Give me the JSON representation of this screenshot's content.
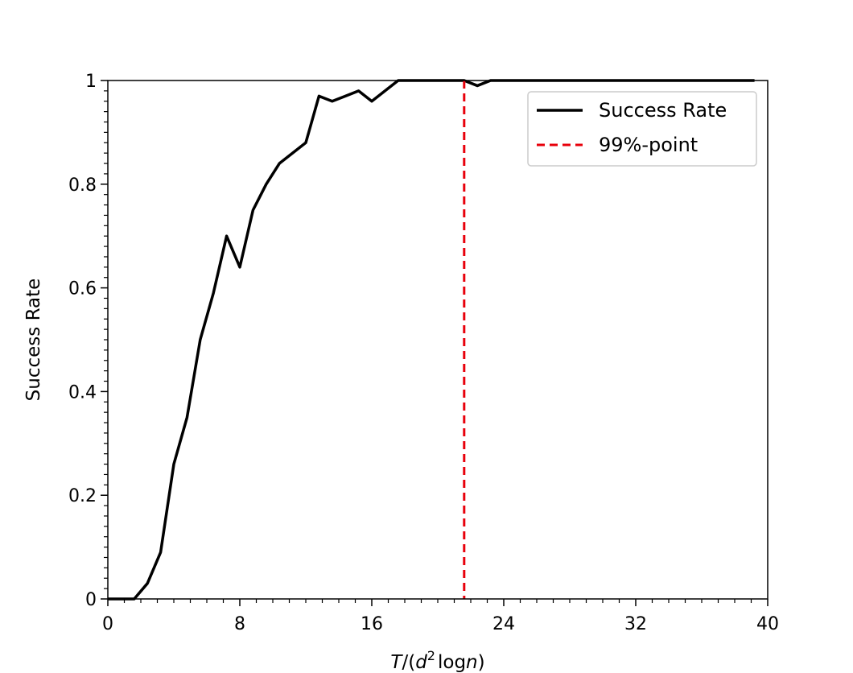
{
  "chart_data": {
    "type": "line",
    "xlim": [
      0,
      40
    ],
    "ylim": [
      0,
      1
    ],
    "xticks": [
      0,
      8,
      16,
      24,
      32,
      40
    ],
    "xtick_labels": [
      "0",
      "8",
      "16",
      "24",
      "32",
      "40"
    ],
    "yticks": [
      0,
      0.2,
      0.4,
      0.6,
      0.8,
      1
    ],
    "ytick_labels": [
      "0",
      "0.2",
      "0.4",
      "0.6",
      "0.8",
      "1"
    ],
    "xlabel": "T/(d2logn)",
    "xlabel_parts": {
      "T": "T",
      "open": "/(",
      "d": "d",
      "sup": "2",
      "log": "log",
      "n": "n",
      "close": ")"
    },
    "ylabel": "Success Rate",
    "grid": false,
    "legend_position": "top-right",
    "series": [
      {
        "name": "Success Rate",
        "color": "#000000",
        "style": "solid",
        "x": [
          0,
          0.8,
          1.6,
          2.4,
          3.2,
          4.0,
          4.8,
          5.6,
          6.4,
          7.2,
          8.0,
          8.8,
          9.6,
          10.4,
          11.2,
          12.0,
          12.8,
          13.6,
          14.4,
          15.2,
          16.0,
          16.8,
          17.6,
          18.4,
          19.2,
          20.0,
          20.8,
          21.6,
          22.4,
          23.2,
          24.0,
          24.8,
          25.6,
          26.4,
          27.2,
          28.0,
          28.8,
          29.6,
          30.4,
          31.2,
          32.0,
          32.8,
          33.6,
          34.4,
          35.2,
          36.0,
          36.8,
          37.6,
          38.4,
          39.2
        ],
        "y": [
          0,
          0,
          0,
          0.03,
          0.09,
          0.26,
          0.35,
          0.5,
          0.59,
          0.7,
          0.64,
          0.75,
          0.8,
          0.84,
          0.86,
          0.88,
          0.97,
          0.96,
          0.97,
          0.98,
          0.96,
          0.98,
          1.0,
          1.0,
          1.0,
          1.0,
          1.0,
          1.0,
          0.99,
          1.0,
          1.0,
          1.0,
          1.0,
          1.0,
          1.0,
          1.0,
          1.0,
          1.0,
          1.0,
          1.0,
          1.0,
          1.0,
          1.0,
          1.0,
          1.0,
          1.0,
          1.0,
          1.0,
          1.0,
          1.0
        ]
      },
      {
        "name": "99%-point",
        "color": "#e8000b",
        "style": "dashed",
        "vline_x": 21.6
      }
    ]
  }
}
